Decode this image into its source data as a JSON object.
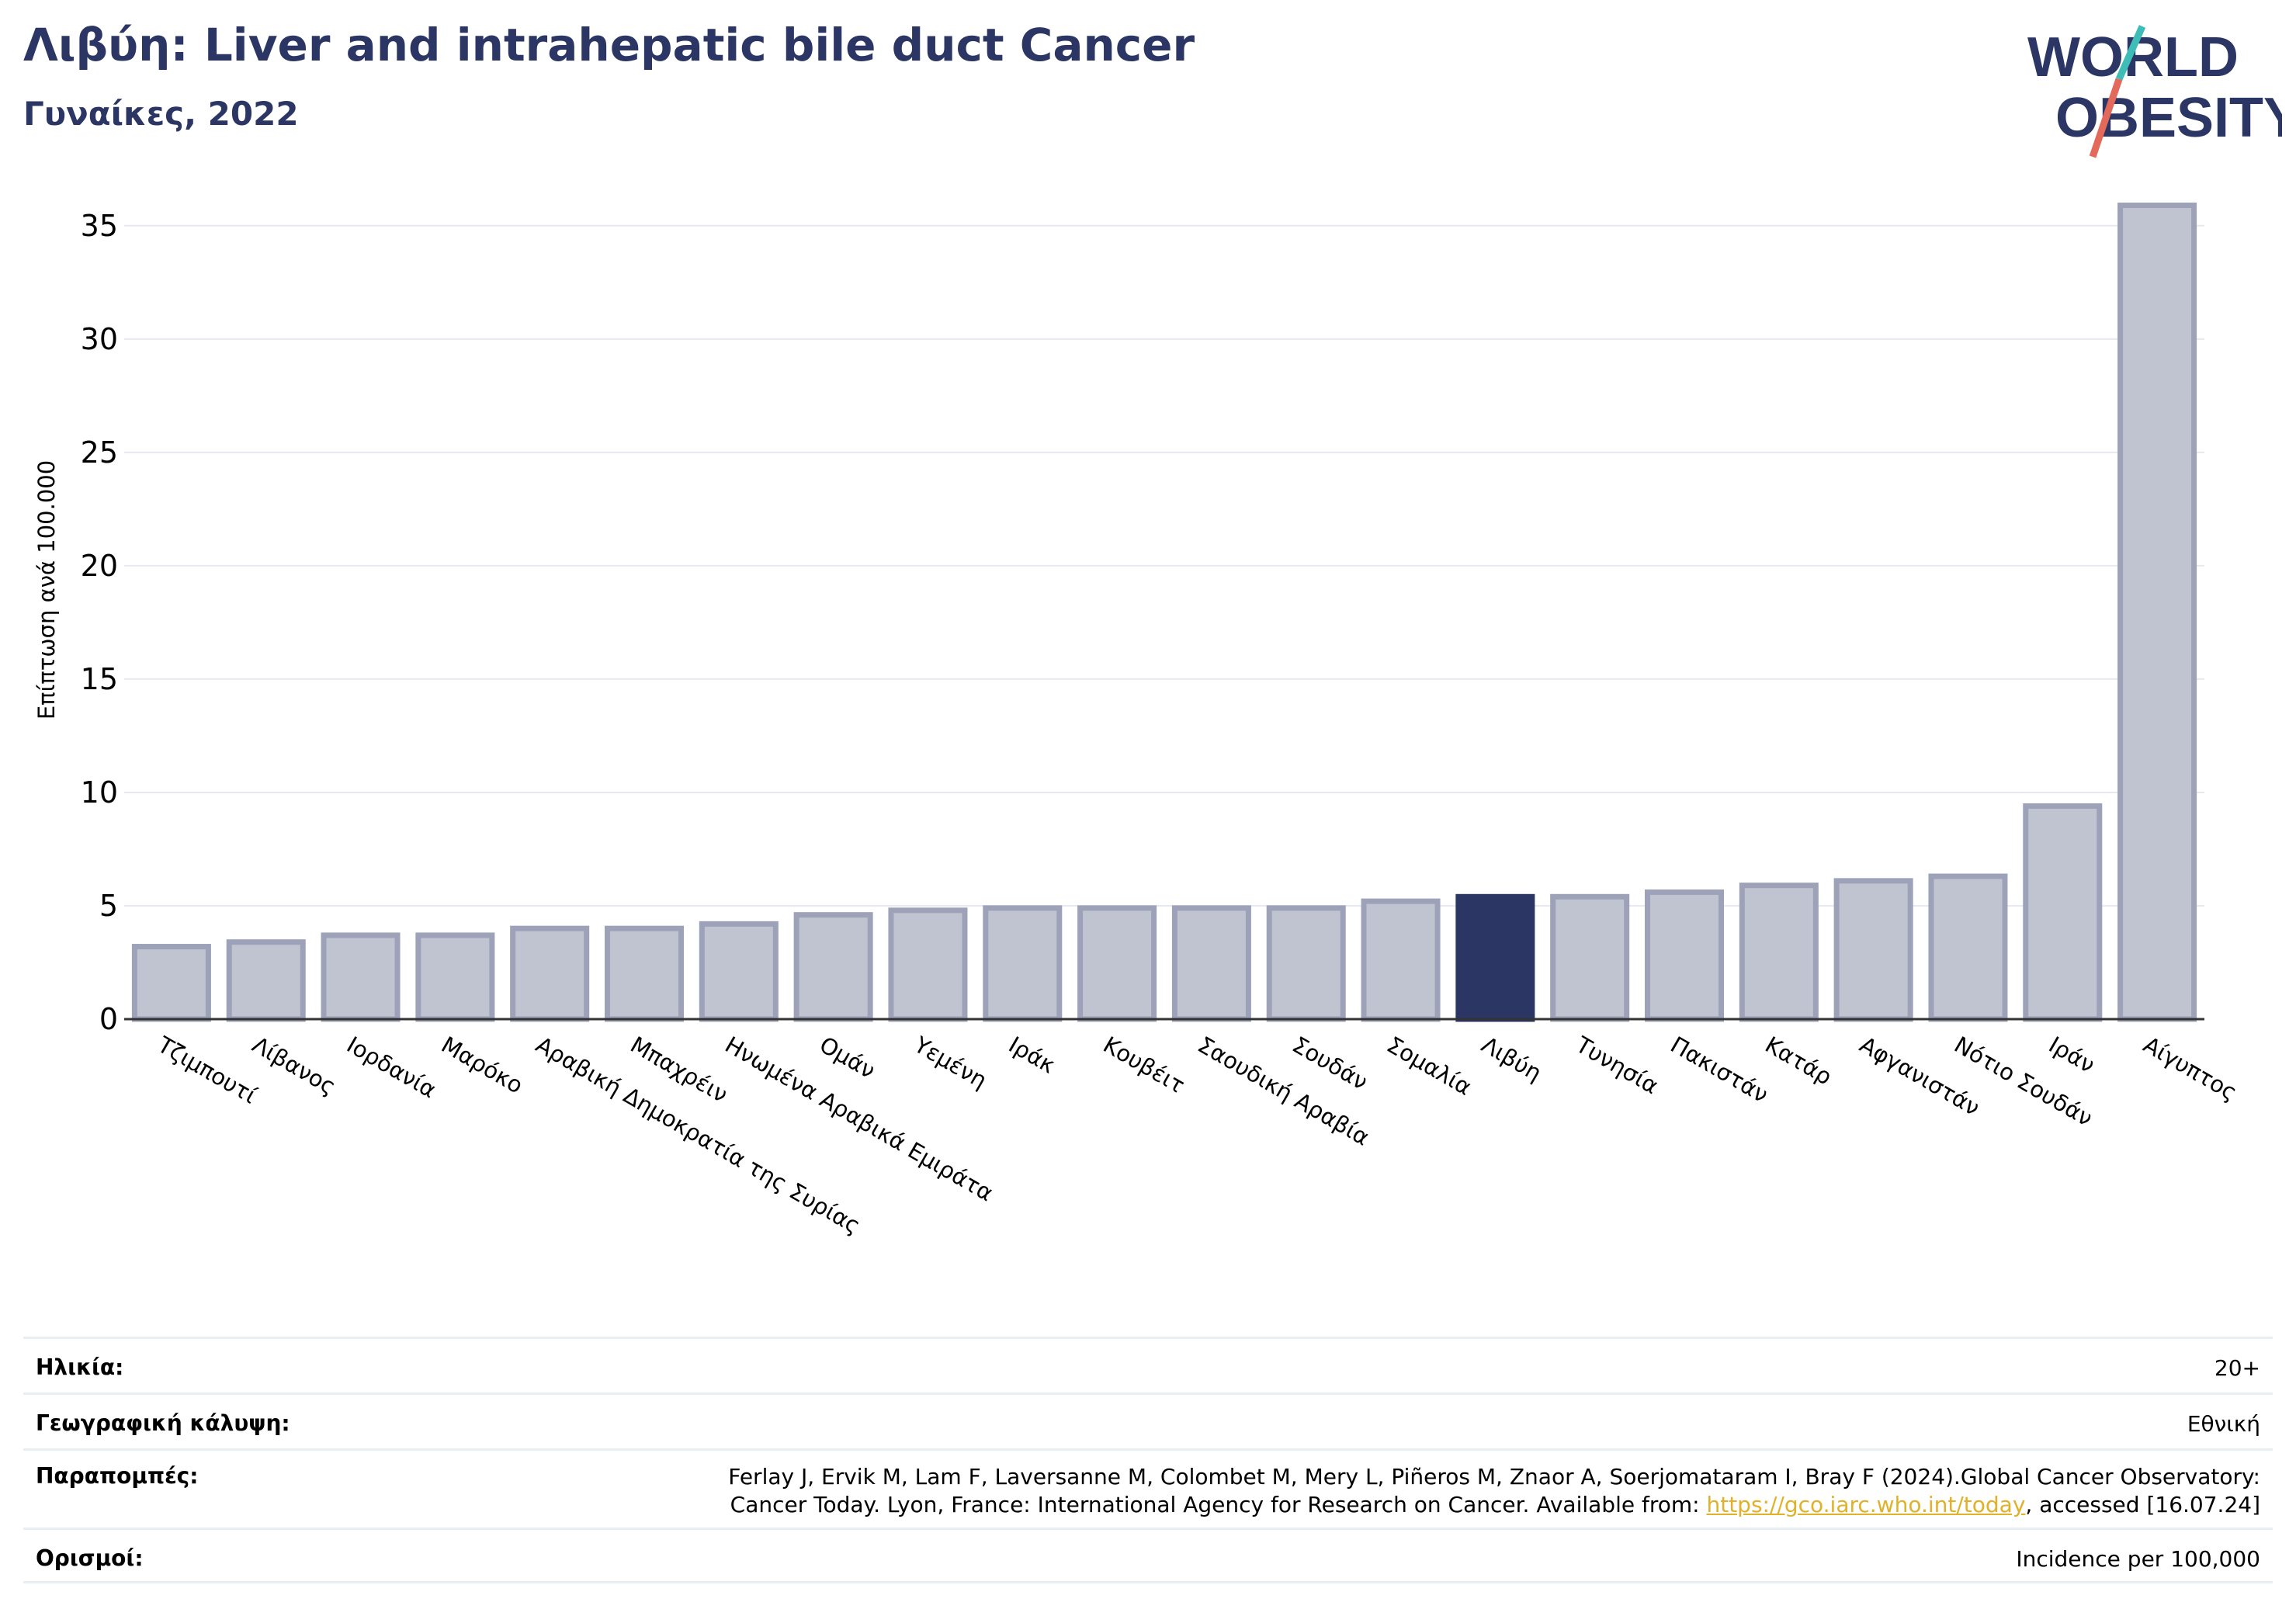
{
  "header": {
    "title": "Λιβύη: Liver and intrahepatic bile duct Cancer",
    "subtitle": "Γυναίκες, 2022"
  },
  "logo": {
    "line1": "WORLD",
    "line2": "OBESITY",
    "text_color": "#2b3664",
    "slash_top_color": "#3dbcb8",
    "slash_bottom_color": "#e3695a"
  },
  "colors": {
    "bar_fill": "#c0c3d0",
    "bar_stroke": "#9da2b9",
    "highlight": "#2b3664",
    "grid": "#e6e9f0",
    "link": "#e0b129"
  },
  "chart_data": {
    "type": "bar",
    "title": "",
    "xlabel": "",
    "ylabel": "Επίπτωση ανά 100.000",
    "ylim": [
      0,
      36.5
    ],
    "yticks": [
      0,
      5,
      10,
      15,
      20,
      25,
      30,
      35
    ],
    "grid": true,
    "highlight_category": "Λιβύη",
    "categories": [
      "Τζιμπουτί",
      "Λίβανος",
      "Ιορδανία",
      "Μαρόκο",
      "Αραβική Δημοκρατία της Συρίας",
      "Μπαχρέιν",
      "Ηνωμένα Αραβικά Εμιράτα",
      "Ομάν",
      "Υεμένη",
      "Ιράκ",
      "Κουβέιτ",
      "Σαουδική Αραβία",
      "Σουδάν",
      "Σομαλία",
      "Λιβύη",
      "Τυνησία",
      "Πακιστάν",
      "Κατάρ",
      "Αφγανιστάν",
      "Νότιο Σουδάν",
      "Ιράν",
      "Αίγυπτος"
    ],
    "values": [
      3.2,
      3.4,
      3.7,
      3.7,
      4.0,
      4.0,
      4.2,
      4.6,
      4.8,
      4.9,
      4.9,
      4.9,
      4.9,
      5.2,
      5.4,
      5.4,
      5.6,
      5.9,
      6.1,
      6.3,
      9.4,
      35.9
    ]
  },
  "info": {
    "age_label": "Ηλικία:",
    "age_value": "20+",
    "coverage_label": "Γεωγραφική κάλυψη:",
    "coverage_value": "Εθνική",
    "refs_label": "Παραπομπές:",
    "refs_line1": "Ferlay J, Ervik M, Lam F, Laversanne M, Colombet M, Mery L, Piñeros M, Znaor A, Soerjomataram I, Bray F (2024).Global Cancer Observatory:",
    "refs_line2_pre": "Cancer Today. Lyon, France: International Agency for Research on Cancer. Available from: ",
    "refs_link": "https://gco.iarc.who.int/today",
    "refs_line2_post": ", accessed [16.07.24]",
    "defs_label": "Ορισμοί:",
    "defs_value": "Incidence per 100,000"
  }
}
